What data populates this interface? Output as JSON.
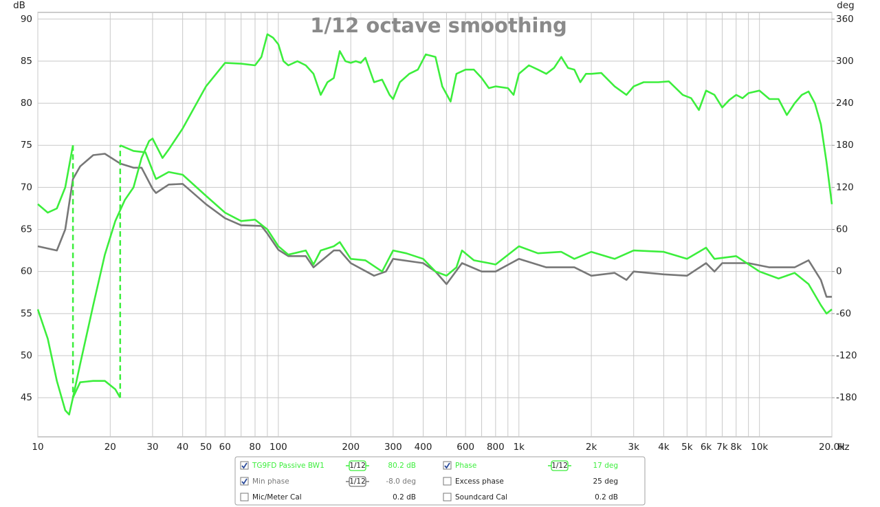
{
  "chart_data": {
    "type": "line",
    "title": "1/12 octave smoothing",
    "y_label": "dB",
    "y2_label": "deg",
    "x_unit": "Hz",
    "log_x": true,
    "grid": true,
    "xlim": [
      10,
      20000
    ],
    "ylim": [
      40.35,
      90.8
    ],
    "y2lim": [
      -235.8,
      369.6
    ],
    "xticks": [
      10,
      20,
      30,
      40,
      50,
      60,
      80,
      100,
      200,
      300,
      400,
      600,
      800,
      {
        "value": 1000,
        "label": "1k"
      },
      {
        "value": 2000,
        "label": "2k"
      },
      {
        "value": 3000,
        "label": "3k"
      },
      {
        "value": 4000,
        "label": "4k"
      },
      {
        "value": 5000,
        "label": "5k"
      },
      {
        "value": 6000,
        "label": "6k"
      },
      {
        "value": 7000,
        "label": "7k"
      },
      {
        "value": 8000,
        "label": "8k"
      },
      {
        "value": 10000,
        "label": "10k"
      },
      {
        "value": 20000,
        "label": "20.0k"
      }
    ],
    "xgrid_minor": [
      70,
      90,
      500,
      700,
      900,
      9000
    ],
    "yticks": [
      45,
      50,
      55,
      60,
      65,
      70,
      75,
      80,
      85,
      90
    ],
    "y2ticks": [
      -180,
      -120,
      -60,
      0,
      60,
      120,
      180,
      240,
      300,
      360
    ],
    "series": [
      {
        "name": "TG9FD Passive BW1",
        "color": "#3cee3c",
        "checked": true,
        "smoothing": "1/12",
        "readout": "80.2 dB",
        "x": [
          10,
          11,
          12,
          13,
          13.5,
          14,
          15,
          17,
          19,
          21,
          23,
          25,
          27,
          29,
          30,
          31,
          33,
          35,
          40,
          50,
          60,
          70,
          80,
          85,
          90,
          95,
          100,
          105,
          110,
          120,
          130,
          140,
          150,
          160,
          170,
          180,
          190,
          200,
          210,
          220,
          230,
          250,
          270,
          290,
          300,
          320,
          350,
          380,
          410,
          450,
          480,
          520,
          550,
          600,
          650,
          700,
          750,
          800,
          900,
          950,
          1000,
          1100,
          1200,
          1300,
          1400,
          1500,
          1600,
          1700,
          1800,
          1900,
          2000,
          2200,
          2500,
          2800,
          3000,
          3300,
          3800,
          4200,
          4800,
          5200,
          5600,
          6000,
          6500,
          7000,
          7500,
          8000,
          8500,
          9000,
          10000,
          11000,
          12000,
          13000,
          14000,
          15000,
          16000,
          17000,
          18000,
          19000,
          20000
        ],
        "values": [
          55.5,
          52,
          47,
          43.5,
          43,
          45,
          49,
          56,
          62,
          66,
          68.5,
          70,
          73.5,
          75.5,
          75.8,
          75,
          73.5,
          74.5,
          77,
          82,
          84.8,
          84.7,
          84.5,
          85.5,
          88.2,
          87.8,
          87,
          85,
          84.5,
          85,
          84.5,
          83.5,
          81,
          82.5,
          83,
          86.2,
          85,
          84.8,
          85,
          84.8,
          85.4,
          82.5,
          82.8,
          81,
          80.5,
          82.5,
          83.5,
          84,
          85.8,
          85.5,
          82,
          80.2,
          83.5,
          84,
          84,
          83,
          81.8,
          82,
          81.8,
          81,
          83.5,
          84.5,
          84,
          83.5,
          84.2,
          85.5,
          84.2,
          84,
          82.5,
          83.5,
          83.5,
          83.6,
          82,
          81,
          82,
          82.5,
          82.5,
          82.6,
          81,
          80.6,
          79.2,
          81.5,
          81,
          79.5,
          80.4,
          81,
          80.6,
          81.2,
          81.5,
          80.5,
          80.5,
          78.6,
          80,
          81,
          81.4,
          80,
          77.5,
          73,
          68
        ]
      },
      {
        "name": "Phase",
        "axis": "y2",
        "color": "#3cee3c",
        "checked": true,
        "smoothing": "1/12",
        "readout": "17 deg",
        "x": [
          10,
          11,
          12,
          13,
          14,
          14,
          15,
          17,
          19,
          21,
          22,
          22,
          25,
          28,
          30,
          31,
          35,
          40,
          50,
          60,
          70,
          80,
          90,
          100,
          110,
          130,
          140,
          150,
          170,
          180,
          200,
          230,
          270,
          300,
          340,
          400,
          450,
          500,
          550,
          580,
          650,
          750,
          800,
          1000,
          1200,
          1500,
          1700,
          2000,
          2500,
          3000,
          4000,
          5000,
          6000,
          6500,
          8000,
          10000,
          12000,
          14000,
          16000,
          18000,
          19000,
          20000
        ],
        "values": [
          96,
          84,
          90,
          120,
          180,
          -180,
          -158,
          -156,
          -156,
          -168,
          -180,
          180,
          172,
          170,
          144,
          132,
          142,
          138,
          108,
          84,
          72,
          74,
          60,
          36,
          24,
          30,
          10,
          30,
          36,
          42,
          18,
          16,
          0,
          30,
          26,
          18,
          0,
          -6,
          6,
          30,
          16,
          12,
          10,
          36,
          26,
          28,
          18,
          28,
          18,
          30,
          28,
          18,
          34,
          18,
          22,
          0,
          -10,
          -2,
          -18,
          -48,
          -60,
          -54
        ]
      },
      {
        "name": "Min phase",
        "axis": "y2",
        "color": "#777777",
        "checked": true,
        "smoothing": "1/12",
        "readout": "-8.0 deg",
        "x": [
          10,
          12,
          13,
          14,
          15,
          17,
          19,
          22,
          25,
          27,
          30,
          31,
          35,
          40,
          50,
          60,
          70,
          85,
          90,
          100,
          110,
          130,
          140,
          170,
          180,
          200,
          250,
          280,
          300,
          400,
          450,
          500,
          580,
          700,
          800,
          1000,
          1300,
          1700,
          2000,
          2500,
          2800,
          3000,
          4000,
          5000,
          6000,
          6500,
          7000,
          9000,
          11000,
          14000,
          16000,
          18000,
          19000,
          20000
        ],
        "values": [
          36,
          30,
          60,
          132,
          150,
          166,
          168,
          154,
          148,
          148,
          118,
          112,
          124,
          125,
          96,
          76,
          66,
          65,
          54,
          31,
          22,
          22,
          6,
          30,
          30,
          12,
          -6,
          0,
          18,
          12,
          0,
          -18,
          12,
          0,
          0,
          18,
          6,
          6,
          -6,
          -2,
          -12,
          0,
          -4,
          -6,
          12,
          0,
          12,
          12,
          6,
          6,
          16,
          -12,
          -36,
          -36
        ]
      }
    ],
    "other_traces": [
      {
        "name": "Excess phase",
        "checked": false,
        "readout": "25 deg"
      },
      {
        "name": "Mic/Meter Cal",
        "checked": false,
        "readout": "0.2 dB"
      },
      {
        "name": "Soundcard Cal",
        "checked": false,
        "readout": "0.2 dB"
      }
    ]
  }
}
